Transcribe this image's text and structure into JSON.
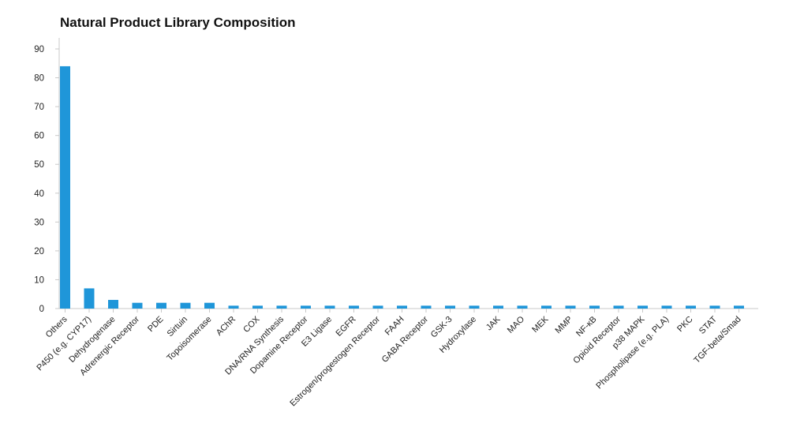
{
  "chart_data": {
    "type": "bar",
    "title": "Natural Product Library Composition",
    "xlabel": "",
    "ylabel": "",
    "ylim": [
      0,
      90
    ],
    "yticks": [
      0,
      10,
      20,
      30,
      40,
      50,
      60,
      70,
      80,
      90
    ],
    "grid": false,
    "bar_color": "#1f96d9",
    "categories": [
      "Others",
      "P450 (e.g. CYP17)",
      "Dehydrogenase",
      "Adrenergic Receptor",
      "PDE",
      "Sirtuin",
      "Topoisomerase",
      "AChR",
      "COX",
      "DNA/RNA Synthesis",
      "Dopamine Receptor",
      "E3 Ligase",
      "EGFR",
      "Estrogen/progestogen Receptor",
      "FAAH",
      "GABA Receptor",
      "GSK-3",
      "Hydroxylase",
      "JAK",
      "MAO",
      "MEK",
      "MMP",
      "NF-κB",
      "Opioid Receptor",
      "p38 MAPK",
      "Phospholipase (e.g. PLA)",
      "PKC",
      "STAT",
      "TGF-beta/Smad"
    ],
    "values": [
      84,
      7,
      3,
      2,
      2,
      2,
      2,
      1,
      1,
      1,
      1,
      1,
      1,
      1,
      1,
      1,
      1,
      1,
      1,
      1,
      1,
      1,
      1,
      1,
      1,
      1,
      1,
      1,
      1
    ]
  }
}
